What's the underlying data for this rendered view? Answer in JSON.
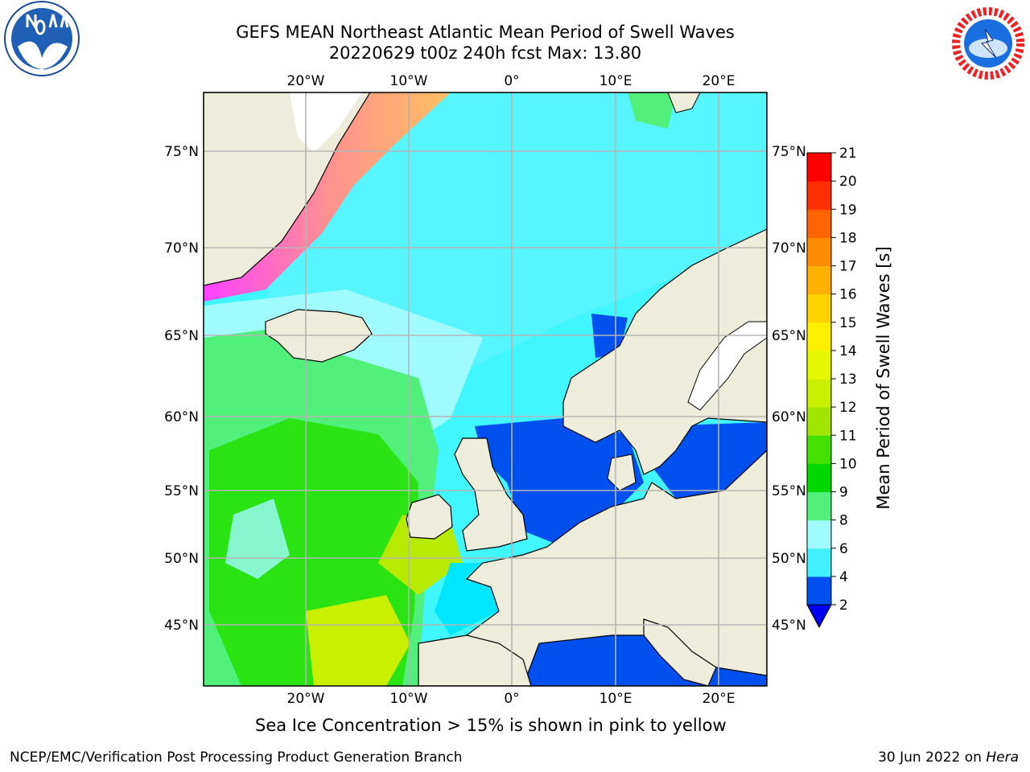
{
  "header": {
    "title_line1": "GEFS MEAN Northeast Atlantic Mean Period of Swell Waves",
    "title_line2": "20220629 t00z 240h fcst   Max: 13.80"
  },
  "logos": {
    "left": "noaa-logo",
    "right": "nws-logo"
  },
  "map": {
    "lon_ticks": [
      "20°W",
      "10°W",
      "0°",
      "10°E",
      "20°E"
    ],
    "lat_ticks": [
      "75°N",
      "70°N",
      "65°N",
      "60°N",
      "55°N",
      "50°N",
      "45°N"
    ],
    "colors": {
      "land": "#eeecdb",
      "grid": "#b5b5b5",
      "coast": "#000000"
    }
  },
  "colorbar": {
    "label": "Mean Period of Swell Waves [s]",
    "ticks": [
      "2",
      "4",
      "6",
      "8",
      "9",
      "10",
      "11",
      "12",
      "13",
      "14",
      "15",
      "16",
      "17",
      "18",
      "19",
      "20",
      "21"
    ],
    "colors": [
      "#0050f0",
      "#00e6ff",
      "#40f0ff",
      "#a0fbff",
      "#50f07a",
      "#00d800",
      "#44e000",
      "#a0e600",
      "#c8f000",
      "#e6f800",
      "#fff000",
      "#ffd200",
      "#ffb000",
      "#ff8c00",
      "#ff6400",
      "#ff3000",
      "#ff0000"
    ]
  },
  "footer": {
    "caption": "Sea Ice Concentration > 15% is shown in pink to yellow",
    "credit": "NCEP/EMC/Verification Post Processing Product Generation Branch",
    "date": "30 Jun 2022 on",
    "host": "Hera"
  }
}
